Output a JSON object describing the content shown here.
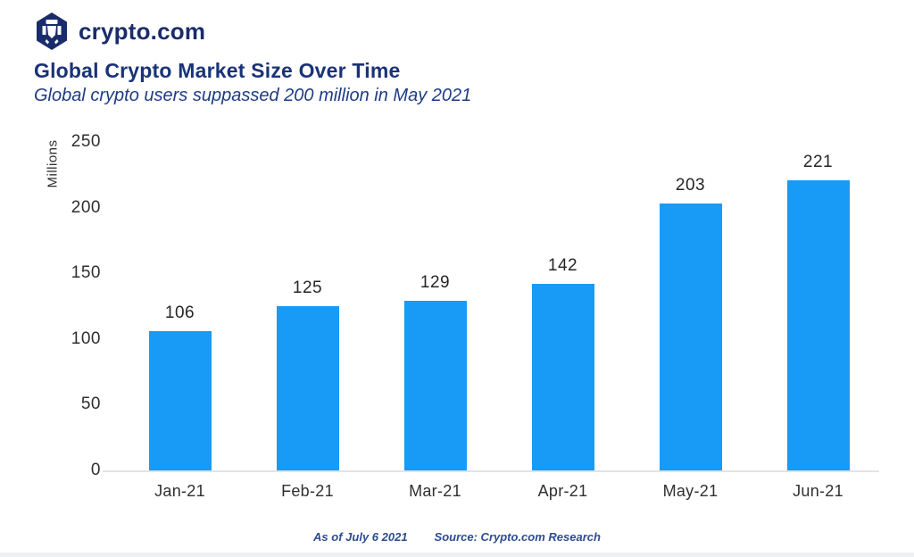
{
  "brand": {
    "name": "crypto.com"
  },
  "header": {
    "title": "Global Crypto Market Size Over Time",
    "subtitle": "Global crypto users suppassed 200 million in May 2021"
  },
  "chart_data": {
    "type": "bar",
    "categories": [
      "Jan-21",
      "Feb-21",
      "Mar-21",
      "Apr-21",
      "May-21",
      "Jun-21"
    ],
    "values": [
      106,
      125,
      129,
      142,
      203,
      221
    ],
    "title": "Global Crypto Market Size Over Time",
    "xlabel": "",
    "ylabel": "Millions",
    "ylim": [
      0,
      250
    ],
    "yticks": [
      0,
      50,
      100,
      150,
      200,
      250
    ],
    "grid": false,
    "legend": false,
    "bar_color": "#189AF7",
    "data_labels": true
  },
  "footer": {
    "as_of": "As of July 6 2021",
    "source": "Source: Crypto.com Research"
  },
  "colors": {
    "brand_navy": "#1A2C6B",
    "title_navy": "#1A3377",
    "bar_blue": "#189AF7",
    "axis_line": "#E3E3E3"
  }
}
